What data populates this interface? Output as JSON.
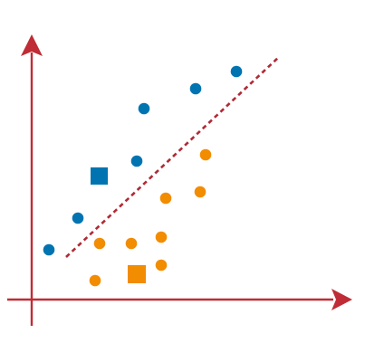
{
  "colors": {
    "axis": "#bf2c35",
    "blue": "#0074b0",
    "orange": "#f28c00",
    "divider": "#b02a35",
    "background": "#ffffff"
  },
  "icons": {
    "x_axis_arrow": "arrowhead-right-icon",
    "y_axis_arrow": "arrowhead-up-icon",
    "blue_point": "circle-icon",
    "orange_point": "circle-icon",
    "blue_representative": "square-icon",
    "orange_representative": "square-icon"
  },
  "diagram": {
    "separator_style": "dashed",
    "classes": [
      {
        "id": "blue",
        "point_count": 7
      },
      {
        "id": "orange",
        "point_count": 9
      }
    ]
  }
}
